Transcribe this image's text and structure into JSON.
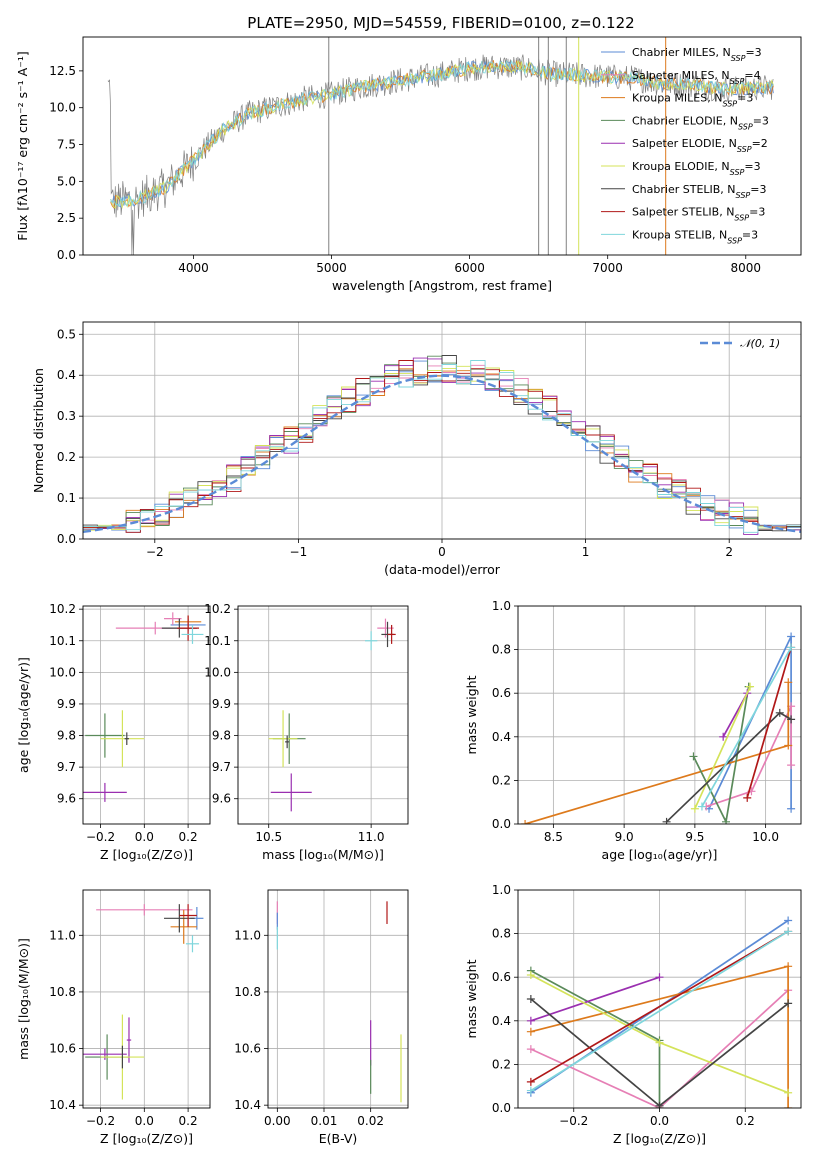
{
  "title": "PLATE=2950, MJD=54559, FIBERID=0100, z=0.122",
  "colors": {
    "ch_miles": "#5b8bd6",
    "sa_miles": "#e67fb5",
    "kr_miles": "#dd7a1c",
    "ch_elodie": "#5a8a5a",
    "sa_elodie": "#9a2fb0",
    "kr_elodie": "#d4e35a",
    "ch_stelib": "#444444",
    "sa_stelib": "#b01818",
    "kr_stelib": "#7fd6dc",
    "spectrum": "#808080",
    "gauss": "#5b8bd6"
  },
  "legend_models": [
    {
      "key": "ch_miles",
      "name": "Chabrier MILES, N",
      "sub": "SSP",
      "val": "=3"
    },
    {
      "key": "sa_miles",
      "name": "Salpeter MILES, N",
      "sub": "SSP",
      "val": "=4"
    },
    {
      "key": "kr_miles",
      "name": "Kroupa MILES, N",
      "sub": "SSP",
      "val": "=3"
    },
    {
      "key": "ch_elodie",
      "name": "Chabrier ELODIE, N",
      "sub": "SSP",
      "val": "=3"
    },
    {
      "key": "sa_elodie",
      "name": "Salpeter ELODIE, N",
      "sub": "SSP",
      "val": "=2"
    },
    {
      "key": "kr_elodie",
      "name": "Kroupa ELODIE, N",
      "sub": "SSP",
      "val": "=3"
    },
    {
      "key": "ch_stelib",
      "name": "Chabrier STELIB, N",
      "sub": "SSP",
      "val": "=3"
    },
    {
      "key": "sa_stelib",
      "name": "Salpeter STELIB, N",
      "sub": "SSP",
      "val": "=3"
    },
    {
      "key": "kr_stelib",
      "name": "Kroupa STELIB, N",
      "sub": "SSP",
      "val": "=3"
    }
  ],
  "chart_data": [
    {
      "id": "spectrum",
      "type": "line",
      "xlabel": "wavelength [Angstrom, rest frame]",
      "ylabel": "Flux [fλ10⁻¹⁷ erg cm⁻² s⁻¹ A⁻¹]",
      "xlim": [
        3200,
        8400
      ],
      "ylim": [
        0,
        14.8
      ],
      "xticks": [
        4000,
        5000,
        6000,
        7000,
        8000
      ],
      "yticks": [
        0.0,
        2.5,
        5.0,
        7.5,
        10.0,
        12.5
      ],
      "continuum": [
        [
          3400,
          3.6
        ],
        [
          3600,
          3.8
        ],
        [
          3800,
          4.6
        ],
        [
          4000,
          6.4
        ],
        [
          4200,
          8.4
        ],
        [
          4400,
          9.6
        ],
        [
          4600,
          10.1
        ],
        [
          4800,
          10.6
        ],
        [
          5000,
          10.9
        ],
        [
          5200,
          11.4
        ],
        [
          5400,
          11.7
        ],
        [
          5600,
          12.0
        ],
        [
          5800,
          12.3
        ],
        [
          6000,
          12.7
        ],
        [
          6200,
          12.8
        ],
        [
          6400,
          12.7
        ],
        [
          6600,
          12.3
        ],
        [
          6800,
          12.2
        ],
        [
          7000,
          12.1
        ],
        [
          7200,
          12.0
        ],
        [
          7400,
          11.6
        ],
        [
          7600,
          11.6
        ],
        [
          7800,
          11.3
        ],
        [
          8000,
          11.3
        ],
        [
          8200,
          11.4
        ]
      ]
    },
    {
      "id": "residuals",
      "type": "histogram",
      "xlabel": "(data-model)/error",
      "ylabel": "Normed distribution",
      "xlim": [
        -2.5,
        2.5
      ],
      "ylim": [
        0,
        0.53
      ],
      "xticks": [
        -2,
        -1,
        0,
        1,
        2
      ],
      "yticks": [
        0.0,
        0.1,
        0.2,
        0.3,
        0.4,
        0.5
      ],
      "gauss_label": "𝒩(0, 1)",
      "bin_width": 0.1
    },
    {
      "id": "age_Z",
      "type": "scatter",
      "xlabel": "Z [log₁₀(Z/Z⊙)]",
      "ylabel": "age  [log₁₀(age/yr)]",
      "xlim": [
        -0.28,
        0.3
      ],
      "ylim": [
        9.52,
        10.21
      ],
      "xticks": [
        -0.2,
        0.0,
        0.2
      ],
      "yticks": [
        9.6,
        9.7,
        9.8,
        9.9,
        10.0,
        10.1,
        10.2
      ],
      "points": [
        {
          "c": "ch_miles",
          "x": 0.2,
          "y": 10.15,
          "ex": 0.08,
          "ey": 0.02
        },
        {
          "c": "sa_miles",
          "x": 0.13,
          "y": 10.17,
          "ex": 0.04,
          "ey": 0.02
        },
        {
          "c": "kr_miles",
          "x": 0.2,
          "y": 10.16,
          "ex": 0.06,
          "ey": 0.02
        },
        {
          "c": "sa_miles",
          "x": 0.05,
          "y": 10.14,
          "ex": 0.18,
          "ey": 0.02
        },
        {
          "c": "ch_stelib",
          "x": 0.16,
          "y": 10.14,
          "ex": 0.08,
          "ey": 0.03
        },
        {
          "c": "sa_stelib",
          "x": 0.2,
          "y": 10.14,
          "ex": 0.05,
          "ey": 0.04
        },
        {
          "c": "kr_stelib",
          "x": 0.22,
          "y": 10.12,
          "ex": 0.05,
          "ey": 0.03
        },
        {
          "c": "ch_elodie",
          "x": -0.18,
          "y": 9.8,
          "ex": 0.09,
          "ey": 0.07
        },
        {
          "c": "kr_elodie",
          "x": -0.1,
          "y": 9.79,
          "ex": 0.1,
          "ey": 0.09
        },
        {
          "c": "ch_stelib",
          "x": -0.08,
          "y": 9.79,
          "ex": 0.01,
          "ey": 0.02
        },
        {
          "c": "sa_elodie",
          "x": -0.18,
          "y": 9.62,
          "ex": 0.1,
          "ey": 0.03
        }
      ]
    },
    {
      "id": "age_mass",
      "type": "scatter",
      "xlabel": "mass [log₁₀(M/M⊙)]",
      "ylabel": "",
      "xlim": [
        10.35,
        11.18
      ],
      "ylim": [
        9.52,
        10.21
      ],
      "xticks": [
        10.5,
        11.0
      ],
      "yticks": [
        9.6,
        9.7,
        9.8,
        9.9,
        10.0,
        10.1,
        10.2
      ],
      "points": [
        {
          "c": "sa_miles",
          "x": 11.07,
          "y": 10.14,
          "ex": 0.04,
          "ey": 0.03
        },
        {
          "c": "ch_stelib",
          "x": 11.08,
          "y": 10.12,
          "ex": 0.03,
          "ey": 0.04
        },
        {
          "c": "sa_stelib",
          "x": 11.1,
          "y": 10.12,
          "ex": 0.02,
          "ey": 0.03
        },
        {
          "c": "kr_stelib",
          "x": 11.0,
          "y": 10.1,
          "ex": 0.03,
          "ey": 0.03
        },
        {
          "c": "ch_elodie",
          "x": 10.6,
          "y": 9.79,
          "ex": 0.08,
          "ey": 0.08
        },
        {
          "c": "kr_elodie",
          "x": 10.57,
          "y": 9.79,
          "ex": 0.07,
          "ey": 0.09
        },
        {
          "c": "ch_stelib",
          "x": 10.59,
          "y": 9.78,
          "ex": 0.01,
          "ey": 0.02
        },
        {
          "c": "sa_elodie",
          "x": 10.61,
          "y": 9.62,
          "ex": 0.1,
          "ey": 0.06
        }
      ]
    },
    {
      "id": "weight_age",
      "type": "line",
      "xlabel": "age  [log₁₀(age/yr)]",
      "ylabel": "mass weight",
      "xlim": [
        8.25,
        10.25
      ],
      "ylim": [
        0,
        1.0
      ],
      "xticks": [
        8.5,
        9.0,
        9.5,
        10.0
      ],
      "yticks": [
        0.0,
        0.2,
        0.4,
        0.6,
        0.8,
        1.0
      ],
      "series": [
        {
          "c": "ch_miles",
          "pts": [
            [
              10.18,
              0.07
            ],
            [
              10.18,
              0.86
            ],
            [
              9.6,
              0.07
            ]
          ]
        },
        {
          "c": "sa_miles",
          "pts": [
            [
              10.18,
              0.27
            ],
            [
              10.18,
              0.54
            ],
            [
              9.9,
              0.15
            ],
            [
              9.58,
              0.08
            ]
          ]
        },
        {
          "c": "kr_miles",
          "pts": [
            [
              8.3,
              0.0
            ],
            [
              10.16,
              0.36
            ],
            [
              10.16,
              0.65
            ]
          ]
        },
        {
          "c": "ch_elodie",
          "pts": [
            [
              9.49,
              0.31
            ],
            [
              9.72,
              0.01
            ],
            [
              9.88,
              0.63
            ]
          ]
        },
        {
          "c": "sa_elodie",
          "pts": [
            [
              9.7,
              0.4
            ],
            [
              9.87,
              0.6
            ]
          ]
        },
        {
          "c": "kr_elodie",
          "pts": [
            [
              9.5,
              0.07
            ],
            [
              9.89,
              0.63
            ]
          ]
        },
        {
          "c": "ch_stelib",
          "pts": [
            [
              9.3,
              0.01
            ],
            [
              10.1,
              0.51
            ],
            [
              10.18,
              0.48
            ]
          ]
        },
        {
          "c": "sa_stelib",
          "pts": [
            [
              9.87,
              0.12
            ],
            [
              10.18,
              0.81
            ]
          ]
        },
        {
          "c": "kr_stelib",
          "pts": [
            [
              9.55,
              0.08
            ],
            [
              10.18,
              0.81
            ]
          ]
        }
      ]
    },
    {
      "id": "mass_Z",
      "type": "scatter",
      "xlabel": "Z [log₁₀(Z/Z⊙)]",
      "ylabel": "mass [log₁₀(M/M⊙)]",
      "xlim": [
        -0.28,
        0.3
      ],
      "ylim": [
        10.39,
        11.16
      ],
      "xticks": [
        -0.2,
        0.0,
        0.2
      ],
      "yticks": [
        10.4,
        10.6,
        10.8,
        11.0
      ],
      "points": [
        {
          "c": "ch_miles",
          "x": 0.24,
          "y": 11.06,
          "ex": 0.03,
          "ey": 0.04
        },
        {
          "c": "sa_miles",
          "x": 0.0,
          "y": 11.09,
          "ex": 0.22,
          "ey": 0.02
        },
        {
          "c": "kr_miles",
          "x": 0.18,
          "y": 11.03,
          "ex": 0.06,
          "ey": 0.06
        },
        {
          "c": "ch_stelib",
          "x": 0.16,
          "y": 11.06,
          "ex": 0.07,
          "ey": 0.05
        },
        {
          "c": "sa_stelib",
          "x": 0.2,
          "y": 11.07,
          "ex": 0.04,
          "ey": 0.04
        },
        {
          "c": "kr_stelib",
          "x": 0.22,
          "y": 10.97,
          "ex": 0.03,
          "ey": 0.03
        },
        {
          "c": "ch_elodie",
          "x": -0.17,
          "y": 10.57,
          "ex": 0.1,
          "ey": 0.08
        },
        {
          "c": "sa_elodie",
          "x": -0.18,
          "y": 10.58,
          "ex": 0.1,
          "ey": 0.02
        },
        {
          "c": "sa_elodie",
          "x": -0.07,
          "y": 10.63,
          "ex": 0.01,
          "ey": 0.08
        },
        {
          "c": "kr_elodie",
          "x": -0.1,
          "y": 10.57,
          "ex": 0.1,
          "ey": 0.15
        },
        {
          "c": "ch_stelib",
          "x": -0.1,
          "y": 10.57,
          "ex": 0.0,
          "ey": 0.04
        }
      ]
    },
    {
      "id": "mass_ebv",
      "type": "scatter",
      "xlabel": "E(B-V)",
      "ylabel": "",
      "xlim": [
        -0.002,
        0.028
      ],
      "ylim": [
        10.39,
        11.16
      ],
      "xticks": [
        0.0,
        0.01,
        0.02
      ],
      "yticks": [
        10.4,
        10.6,
        10.8,
        11.0
      ],
      "points": [
        {
          "c": "sa_miles",
          "x": 0.0,
          "y": 11.08,
          "ex": 0,
          "ey": 0.04
        },
        {
          "c": "ch_miles",
          "x": 0.0,
          "y": 11.05,
          "ex": 0,
          "ey": 0.03
        },
        {
          "c": "kr_stelib",
          "x": 0.0,
          "y": 10.99,
          "ex": 0,
          "ey": 0.04
        },
        {
          "c": "sa_stelib",
          "x": 0.0235,
          "y": 11.08,
          "ex": 0,
          "ey": 0.04
        },
        {
          "c": "sa_elodie",
          "x": 0.02,
          "y": 10.62,
          "ex": 0,
          "ey": 0.08
        },
        {
          "c": "ch_elodie",
          "x": 0.02,
          "y": 10.5,
          "ex": 0,
          "ey": 0.06
        },
        {
          "c": "kr_elodie",
          "x": 0.0265,
          "y": 10.53,
          "ex": 0,
          "ey": 0.12
        }
      ]
    },
    {
      "id": "weight_Z",
      "type": "line",
      "xlabel": "Z [log₁₀(Z/Z⊙)]",
      "ylabel": "mass weight",
      "xlim": [
        -0.33,
        0.33
      ],
      "ylim": [
        0,
        1.0
      ],
      "xticks": [
        -0.2,
        0.0,
        0.2
      ],
      "yticks": [
        0.0,
        0.2,
        0.4,
        0.6,
        0.8,
        1.0
      ],
      "series": [
        {
          "c": "ch_miles",
          "pts": [
            [
              -0.3,
              0.07
            ],
            [
              0.3,
              0.86
            ]
          ]
        },
        {
          "c": "sa_miles",
          "pts": [
            [
              -0.3,
              0.27
            ],
            [
              0.0,
              0.0
            ],
            [
              0.3,
              0.54
            ]
          ]
        },
        {
          "c": "kr_miles",
          "pts": [
            [
              -0.3,
              0.35
            ],
            [
              0.3,
              0.65
            ],
            [
              0.3,
              0.0
            ]
          ]
        },
        {
          "c": "ch_elodie",
          "pts": [
            [
              -0.3,
              0.63
            ],
            [
              0.0,
              0.31
            ],
            [
              0.0,
              0.0
            ]
          ]
        },
        {
          "c": "sa_elodie",
          "pts": [
            [
              -0.3,
              0.4
            ],
            [
              0.0,
              0.6
            ]
          ]
        },
        {
          "c": "kr_elodie",
          "pts": [
            [
              -0.3,
              0.61
            ],
            [
              0.0,
              0.3
            ],
            [
              0.3,
              0.07
            ]
          ]
        },
        {
          "c": "ch_stelib",
          "pts": [
            [
              -0.3,
              0.5
            ],
            [
              0.0,
              0.01
            ],
            [
              0.3,
              0.48
            ]
          ]
        },
        {
          "c": "sa_stelib",
          "pts": [
            [
              -0.3,
              0.12
            ],
            [
              0.3,
              0.81
            ]
          ]
        },
        {
          "c": "kr_stelib",
          "pts": [
            [
              -0.3,
              0.08
            ],
            [
              0.3,
              0.81
            ]
          ]
        }
      ]
    }
  ]
}
